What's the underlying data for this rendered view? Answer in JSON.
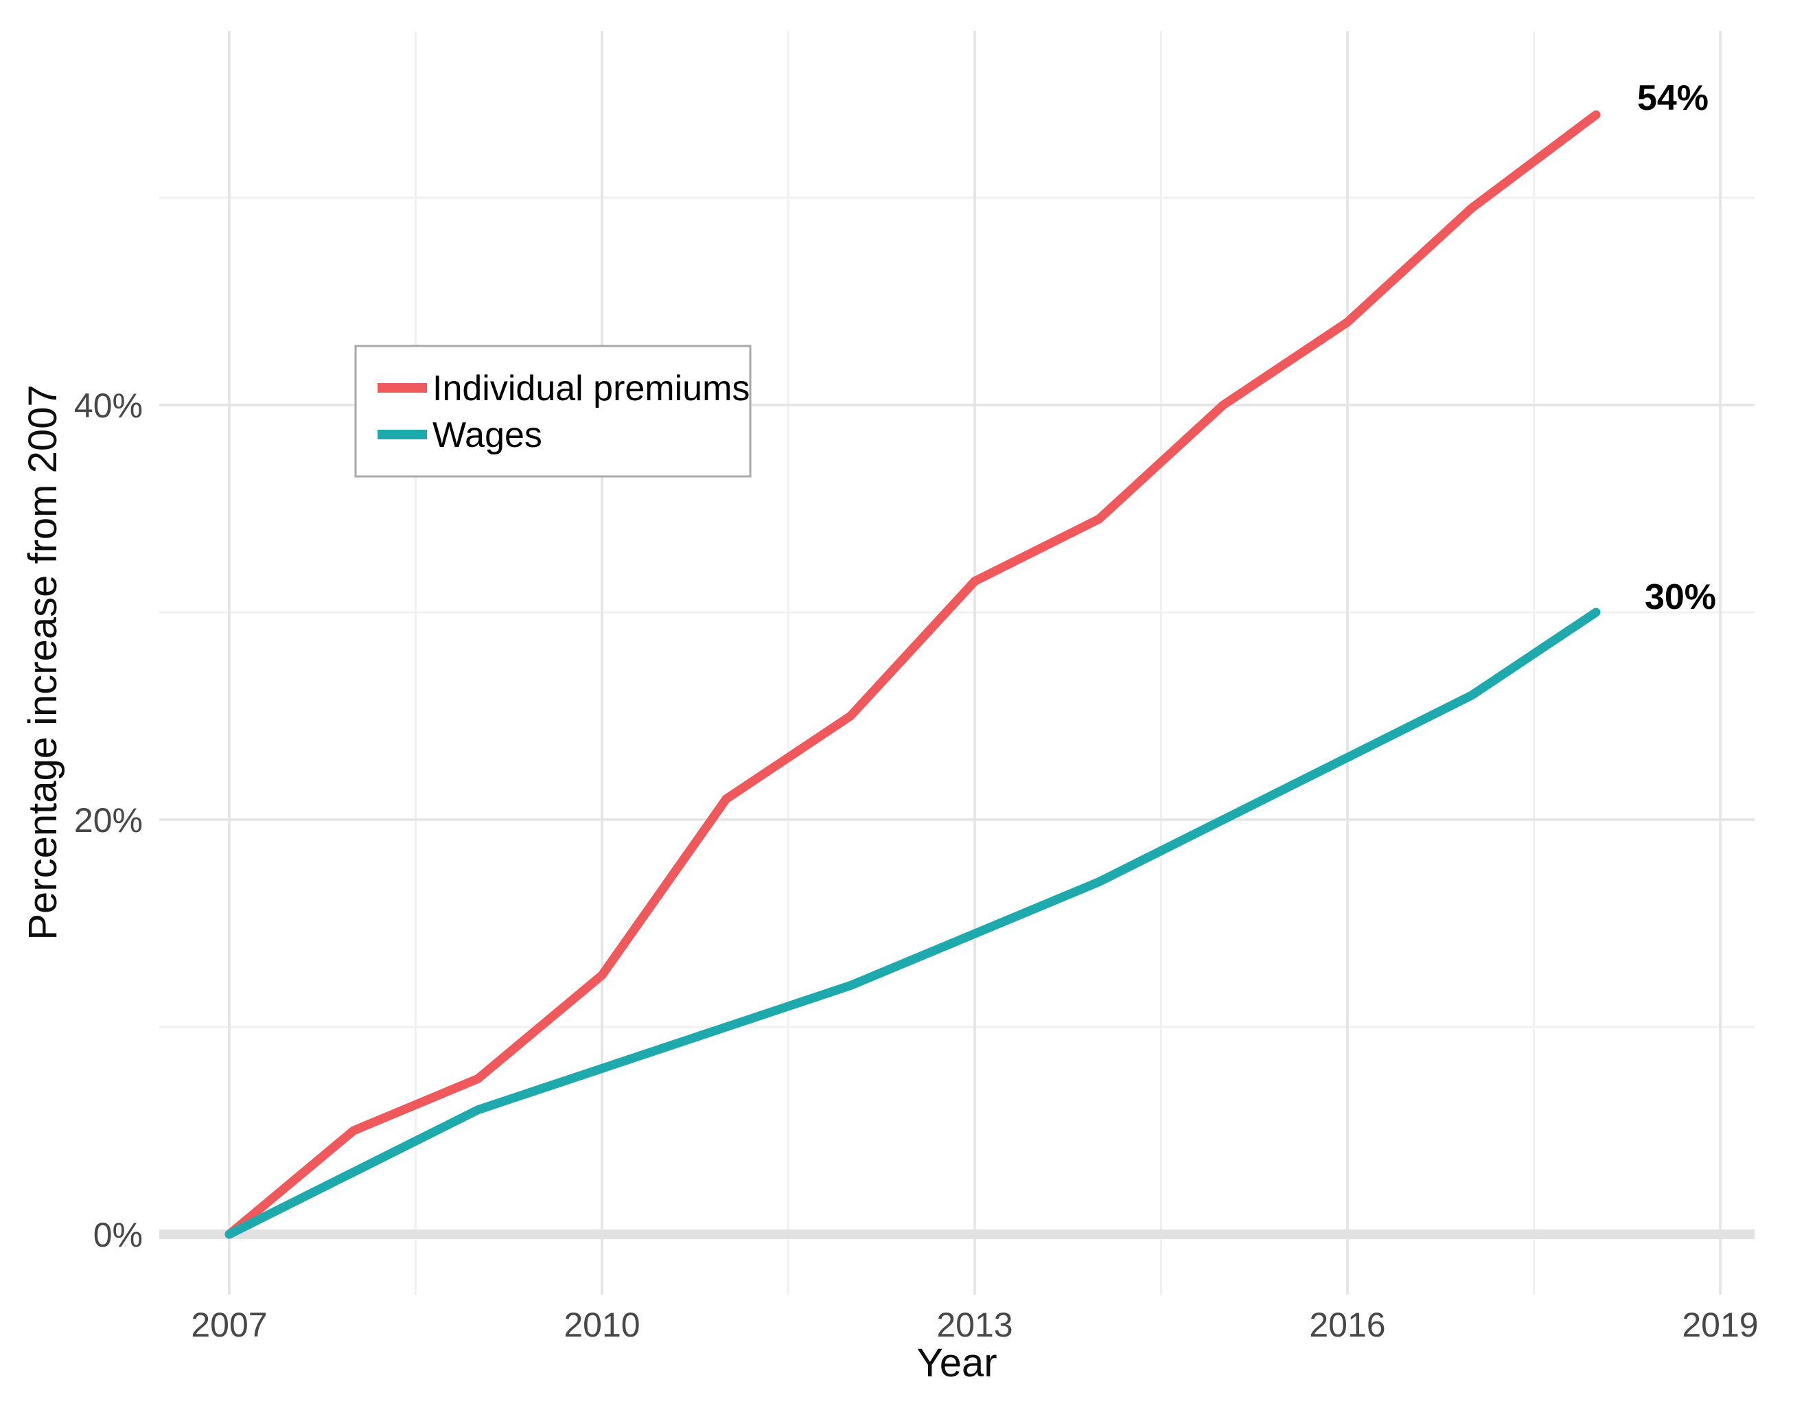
{
  "chart_data": {
    "type": "line",
    "title": "",
    "xlabel": "Year",
    "ylabel": "Percentage increase from 2007",
    "x": [
      2007,
      2008,
      2009,
      2010,
      2011,
      2012,
      2013,
      2014,
      2015,
      2016,
      2017,
      2018
    ],
    "series": [
      {
        "name": "Individual premiums",
        "color": "#F0595C",
        "values": [
          0,
          5,
          7.5,
          12.5,
          21,
          25,
          31.5,
          34.5,
          40,
          44,
          49.5,
          54
        ],
        "end_label": "54%"
      },
      {
        "name": "Wages",
        "color": "#1EA9AD",
        "values": [
          0,
          3,
          6,
          8,
          10,
          12,
          14.5,
          17,
          20,
          23,
          26,
          30
        ],
        "end_label": "30%"
      }
    ],
    "xticks": {
      "values": [
        2007,
        2010,
        2013,
        2016,
        2019
      ],
      "labels": [
        "2007",
        "2010",
        "2013",
        "2016",
        "2019"
      ]
    },
    "yticks": {
      "values": [
        0,
        20,
        40
      ],
      "labels": [
        "0%",
        "20%",
        "40%"
      ]
    },
    "xminor": [
      2008.5,
      2011.5,
      2014.5,
      2017.5
    ],
    "yminor": [
      10,
      30,
      50
    ],
    "xlim": [
      2006.4,
      2019.6
    ],
    "ylim": [
      -2.9,
      58
    ],
    "grid": "on",
    "legend_position": "inside-top-left",
    "colors": {
      "major_gridline": "#E4E4E4",
      "minor_gridline": "#F1F1F1",
      "zero_baseline": "#E2E2E2",
      "tick_text": "#474747",
      "legend_border": "#A8A8A8",
      "background": "#FFFFFF"
    }
  }
}
